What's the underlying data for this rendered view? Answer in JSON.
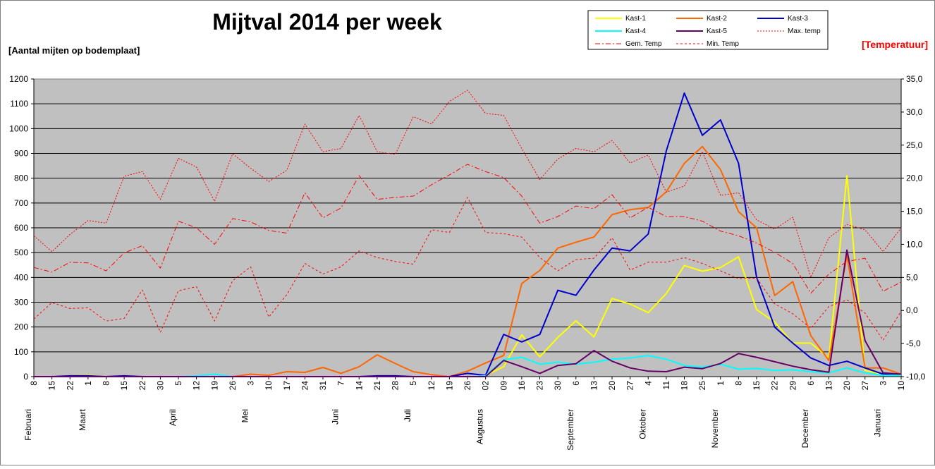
{
  "chart_data": {
    "type": "line",
    "title": "Mijtval 2014 per week",
    "ylabel": "[Aantal mijten op bodemplaat]",
    "y2label": "[Temperatuur]",
    "ylim": [
      0,
      1200
    ],
    "yticks": [
      "0",
      "100",
      "200",
      "300",
      "400",
      "500",
      "600",
      "700",
      "800",
      "900",
      "1000",
      "1100",
      "1200"
    ],
    "y2lim": [
      -10,
      35
    ],
    "y2ticks": [
      "-10,0",
      "-5,0",
      "0,0",
      "5,0",
      "10,0",
      "15,0",
      "20,0",
      "25,0",
      "30,0",
      "35,0"
    ],
    "grid": true,
    "legend_position": "top-right",
    "x": [
      "8",
      "15",
      "22",
      "1",
      "8",
      "15",
      "22",
      "30",
      "5",
      "12",
      "19",
      "26",
      "3",
      "10",
      "17",
      "24",
      "31",
      "7",
      "14",
      "21",
      "28",
      "5",
      "12",
      "19",
      "26",
      "02",
      "09",
      "16",
      "23",
      "30",
      "6",
      "13",
      "20",
      "27",
      "4",
      "11",
      "18",
      "25",
      "1",
      "8",
      "15",
      "22",
      "29",
      "6",
      "13",
      "20",
      "27",
      "3",
      "10"
    ],
    "months": [
      {
        "label": "Februari",
        "index": 0
      },
      {
        "label": "Maart",
        "index": 3
      },
      {
        "label": "April",
        "index": 8
      },
      {
        "label": "Mei",
        "index": 12
      },
      {
        "label": "Juni",
        "index": 17
      },
      {
        "label": "Juli",
        "index": 21
      },
      {
        "label": "Augustus",
        "index": 25
      },
      {
        "label": "September",
        "index": 30
      },
      {
        "label": "Oktober",
        "index": 34
      },
      {
        "label": "November",
        "index": 38
      },
      {
        "label": "December",
        "index": 43
      },
      {
        "label": "Januari",
        "index": 47
      }
    ],
    "series": [
      {
        "name": "Kast-1",
        "axis": "left",
        "color": "#ffff00",
        "style": "solid",
        "width": 2,
        "values": [
          0,
          0,
          3,
          5,
          0,
          0,
          0,
          0,
          0,
          0,
          0,
          0,
          0,
          0,
          0,
          0,
          0,
          0,
          0,
          0,
          0,
          0,
          0,
          0,
          0,
          5,
          40,
          168,
          80,
          158,
          225,
          160,
          315,
          293,
          258,
          335,
          448,
          425,
          440,
          483,
          270,
          220,
          135,
          135,
          75,
          810,
          25,
          10,
          5
        ]
      },
      {
        "name": "Kast-2",
        "axis": "left",
        "color": "#ff6600",
        "style": "solid",
        "width": 2,
        "values": [
          0,
          0,
          0,
          0,
          0,
          0,
          0,
          0,
          0,
          0,
          0,
          0,
          10,
          5,
          20,
          17,
          37,
          13,
          40,
          88,
          53,
          20,
          8,
          0,
          22,
          55,
          85,
          375,
          428,
          518,
          542,
          563,
          653,
          673,
          682,
          745,
          860,
          928,
          835,
          665,
          600,
          327,
          383,
          165,
          65,
          490,
          35,
          35,
          10
        ]
      },
      {
        "name": "Kast-3",
        "axis": "left",
        "color": "#0000cc",
        "style": "solid",
        "width": 2,
        "values": [
          0,
          0,
          3,
          3,
          0,
          3,
          0,
          0,
          0,
          0,
          0,
          0,
          0,
          0,
          0,
          0,
          0,
          0,
          0,
          3,
          3,
          0,
          0,
          0,
          13,
          5,
          170,
          140,
          170,
          348,
          328,
          430,
          518,
          507,
          575,
          910,
          1143,
          973,
          1035,
          860,
          400,
          200,
          135,
          75,
          45,
          62,
          35,
          10,
          10
        ]
      },
      {
        "name": "Kast-4",
        "axis": "left",
        "color": "#00ffff",
        "style": "solid",
        "width": 2,
        "values": [
          0,
          0,
          0,
          0,
          0,
          0,
          0,
          0,
          0,
          3,
          10,
          0,
          0,
          0,
          0,
          0,
          0,
          0,
          0,
          0,
          0,
          0,
          0,
          0,
          0,
          3,
          68,
          78,
          50,
          58,
          50,
          58,
          70,
          75,
          85,
          70,
          45,
          38,
          50,
          30,
          33,
          25,
          28,
          20,
          15,
          35,
          15,
          5,
          5
        ]
      },
      {
        "name": "Kast-5",
        "axis": "left",
        "color": "#660066",
        "style": "solid",
        "width": 2,
        "values": [
          0,
          0,
          0,
          0,
          0,
          0,
          0,
          0,
          0,
          0,
          0,
          0,
          0,
          0,
          0,
          0,
          0,
          0,
          0,
          0,
          0,
          0,
          0,
          0,
          0,
          0,
          65,
          40,
          13,
          45,
          52,
          105,
          62,
          35,
          22,
          20,
          38,
          32,
          53,
          93,
          78,
          60,
          42,
          28,
          18,
          510,
          145,
          15,
          10
        ]
      },
      {
        "name": "Max. temp",
        "axis": "right",
        "color": "#ff0000",
        "style": "dotted",
        "width": 1,
        "values": [
          11.3,
          8.9,
          11.5,
          13.6,
          13.2,
          20.3,
          21.0,
          16.8,
          23.0,
          21.7,
          16.5,
          23.7,
          21.5,
          19.5,
          21.2,
          28.2,
          24.0,
          24.5,
          29.5,
          24.0,
          23.6,
          29.3,
          28.2,
          31.6,
          33.3,
          29.8,
          29.5,
          24.5,
          19.8,
          22.9,
          24.5,
          24.0,
          25.7,
          22.3,
          23.5,
          17.9,
          18.8,
          24.0,
          17.4,
          17.8,
          13.7,
          12.3,
          14.1,
          5.0,
          11.0,
          13.0,
          12.2,
          8.9,
          12.5
        ]
      },
      {
        "name": "Gem. Temp",
        "axis": "right",
        "color": "#ff0000",
        "style": "dashdot",
        "width": 1,
        "values": [
          6.5,
          5.8,
          7.3,
          7.2,
          6.0,
          8.7,
          9.8,
          6.4,
          13.5,
          12.5,
          10.0,
          13.9,
          13.4,
          12.1,
          11.7,
          17.8,
          14.0,
          15.5,
          20.4,
          16.8,
          17.1,
          17.3,
          19.0,
          20.5,
          22.1,
          21.0,
          20.1,
          17.3,
          13.2,
          14.2,
          15.8,
          15.4,
          17.5,
          14.0,
          15.6,
          14.2,
          14.2,
          13.5,
          12.0,
          11.3,
          10.2,
          8.8,
          7.1,
          2.6,
          5.5,
          7.4,
          7.9,
          2.9,
          4.3
        ]
      },
      {
        "name": "Min. Temp",
        "axis": "right",
        "color": "#ff0000",
        "style": "dashed",
        "width": 1,
        "values": [
          -1.3,
          1.2,
          0.3,
          0.4,
          -1.6,
          -1.2,
          3.1,
          -3.3,
          3.0,
          3.6,
          -1.6,
          4.5,
          6.6,
          -1.0,
          2.4,
          7.1,
          5.5,
          6.6,
          9.0,
          8.0,
          7.4,
          7.0,
          12.2,
          11.8,
          17.1,
          11.8,
          11.6,
          11.1,
          8.0,
          6.0,
          7.7,
          7.9,
          11.0,
          6.1,
          7.3,
          7.3,
          8.0,
          7.1,
          6.0,
          4.8,
          4.9,
          1.0,
          -0.5,
          -2.7,
          0.6,
          1.6,
          -0.4,
          -4.5,
          -0.1
        ]
      }
    ]
  }
}
